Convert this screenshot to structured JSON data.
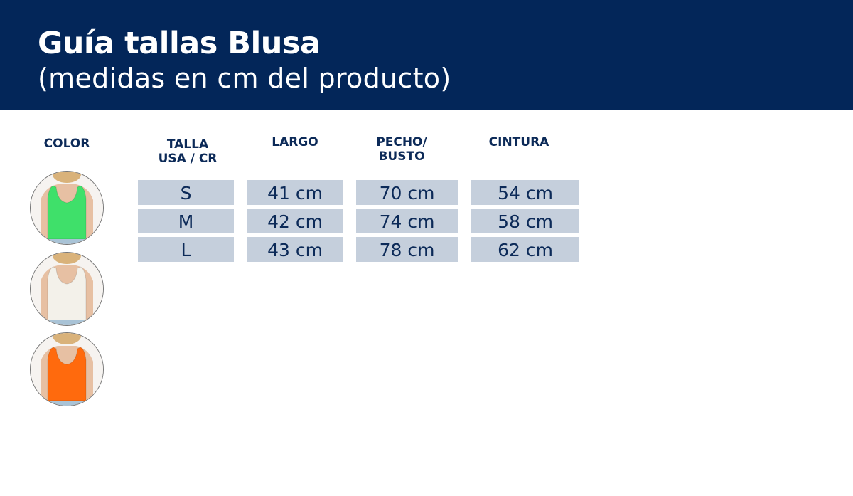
{
  "header": {
    "title": "Guía tallas Blusa",
    "subtitle": "(medidas en cm del producto)",
    "background_color": "#032659"
  },
  "table": {
    "headers": {
      "color": "COLOR",
      "talla_line1": "TALLA",
      "talla_line2": "USA / CR",
      "largo": "LARGO",
      "pecho_line1": "PECHO/",
      "pecho_line2": "BUSTO",
      "cintura": "CINTURA"
    },
    "rows": [
      {
        "talla": "S",
        "largo": "41 cm",
        "pecho": "70 cm",
        "cintura": "54 cm"
      },
      {
        "talla": "M",
        "largo": "42 cm",
        "pecho": "74 cm",
        "cintura": "58 cm"
      },
      {
        "talla": "L",
        "largo": "43 cm",
        "pecho": "78 cm",
        "cintura": "62 cm"
      }
    ],
    "cell_color": "#c5cfdc"
  },
  "colors": [
    {
      "name": "green",
      "hex": "#3fe06a"
    },
    {
      "name": "white",
      "hex": "#f3f1ea"
    },
    {
      "name": "orange",
      "hex": "#ff6a0d"
    }
  ]
}
